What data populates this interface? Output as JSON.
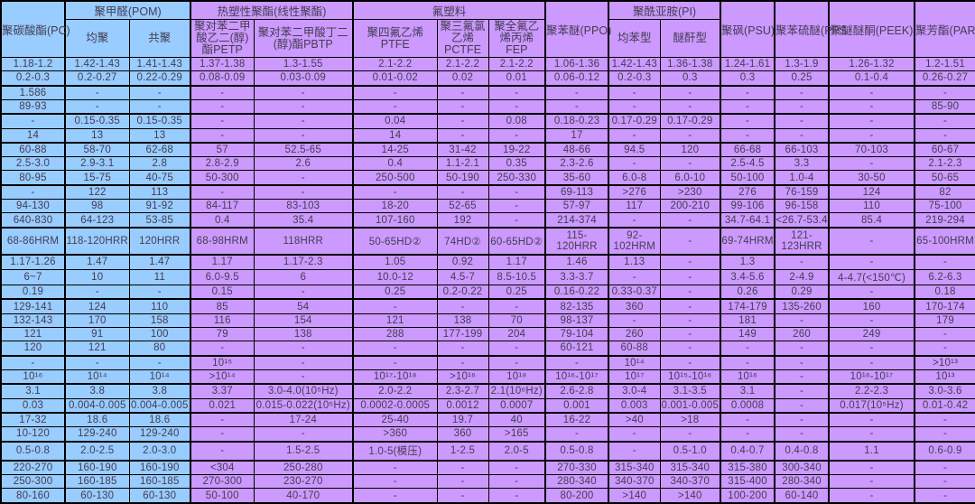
{
  "colors": {
    "blue_section": "#99CCFF",
    "purple_section": "#CC99FF",
    "grid_line": "#000000",
    "text": "#433d52"
  },
  "table": {
    "groups": [
      {
        "label": "聚碳酸酯(PC)"
      },
      {
        "label": "聚甲醛(POM)"
      },
      {
        "label": "热塑性聚酯(线性聚酯)"
      },
      {
        "label": "氟塑料"
      },
      {
        "label": "聚苯醚(PPO)"
      },
      {
        "label": "聚酰亚胺(PI)"
      },
      {
        "label": "聚砜(PSU)"
      },
      {
        "label": "聚苯硫醚(PPS"
      },
      {
        "label": "聚醚醚酮(PEEK)"
      },
      {
        "label": "聚芳酯(PAR)"
      }
    ],
    "subheads": [
      "均聚",
      "共聚",
      "聚对苯二甲酸乙二(醇)酯PETP",
      "聚对苯二甲酸丁二(醇)酯PBTP",
      "聚四氟乙烯PTFE",
      "聚三氟氯乙烯PCTFE",
      "聚全氟乙烯丙烯FEP",
      "均苯型",
      "醚酐型"
    ],
    "rows": [
      [
        "1.18-1.2",
        "1.42-1.43",
        "1.41-1.43",
        "1.37-1.38",
        "1.3-1.55",
        "2.1-2.2",
        "2.1-2.2",
        "2.1-2.2",
        "1.06-1.36",
        "1.42-1.43",
        "1.36-1.38",
        "1.24-1.61",
        "1.3-1.9",
        "1.26-1.32",
        "1.2-1.51"
      ],
      [
        "0.2-0.3",
        "0.2-0.27",
        "0.22-0.29",
        "0.08-0.09",
        "0.03-0.09",
        "0.01-0.02",
        "0.02",
        "0.01",
        "0.06-0.12",
        "0.2-0.3",
        "0.3",
        "0.3",
        "0.25",
        "0.1-0.4",
        "0.26-0.27"
      ],
      [
        "1.586",
        "-",
        "-",
        "-",
        "-",
        "-",
        "-",
        "-",
        "-",
        "-",
        "-",
        "-",
        "-",
        "-",
        "-"
      ],
      [
        "89-93",
        "-",
        "-",
        "-",
        "-",
        "-",
        "-",
        "-",
        "-",
        "-",
        "-",
        "-",
        "-",
        "-",
        "85-90"
      ],
      [
        "-",
        "0.15-0.35",
        "0.15-0.35",
        "-",
        "-",
        "0.04",
        "-",
        "0.08",
        "0.18-0.23",
        "0.17-0.29",
        "0.17-0.29",
        "-",
        "-",
        "-",
        "-"
      ],
      [
        "14",
        "13",
        "13",
        "-",
        "-",
        "14",
        "-",
        "-",
        "17",
        "-",
        "-",
        "-",
        "-",
        "-",
        "-"
      ],
      [
        "60-88",
        "58-70",
        "62-68",
        "57",
        "52.5-65",
        "14-25",
        "31-42",
        "19-22",
        "48-66",
        "94.5",
        "120",
        "66-68",
        "66-103",
        "70-103",
        "60-67"
      ],
      [
        "2.5-3.0",
        "2.9-3.1",
        "2.8",
        "2.8-2.9",
        "2.6",
        "0.4",
        "1.1-2.1",
        "0.35",
        "2.3-2.6",
        "-",
        "-",
        "2.5-4.5",
        "3.3",
        "-",
        "2.1-2.3"
      ],
      [
        "80-95",
        "15-75",
        "40-75",
        "50-300",
        "-",
        "250-500",
        "50-190",
        "250-330",
        "35-60",
        "6.0-8",
        "6.0-10",
        "50-100",
        "1.0-4",
        "30-50",
        "50-65"
      ],
      [
        "-",
        "122",
        "113",
        "-",
        "-",
        "-",
        "-",
        "-",
        "69-113",
        ">276",
        ">230",
        "276",
        "76-159",
        "124",
        "82"
      ],
      [
        "94-130",
        "98",
        "91-92",
        "84-117",
        "83-103",
        "18-20",
        "52-65",
        "-",
        "57-97",
        "117",
        "200-210",
        "99-106",
        "96-158",
        "110",
        "75-100"
      ],
      [
        "640-830",
        "64-123",
        "53-85",
        "0.4",
        "35.4",
        "107-160",
        "192",
        "-",
        "214-374",
        "-",
        "-",
        "34.7-64.1",
        "<26.7-53.4",
        "85.4",
        "219-294"
      ],
      [
        "68-86HRM",
        "118-120HRR",
        "120HRR",
        "68-98HRM",
        "118HRR",
        "50-65HD②",
        "74HD②",
        "60-65HD②",
        "115-120HRR",
        "92-102HRM",
        "-",
        "69-74HRM",
        "121-123HRR",
        "-",
        "65-100HRM"
      ],
      [
        "1.17-1.26",
        "1.47",
        "1.47",
        "1.17",
        "1.17-2.3",
        "1.05",
        "0.92",
        "1.17",
        "1.46",
        "1.13",
        "-",
        "1.3",
        "-",
        "-",
        "-"
      ],
      [
        "6~7",
        "10",
        "11",
        "6.0-9.5",
        "6",
        "10.0-12",
        "4.5-7",
        "8.5-10.5",
        "3.3-3.7",
        "-",
        "-",
        "3.4-5.6",
        "2-4.9",
        "4-4.7(<150℃)",
        "6.2-6.3"
      ],
      [
        "0.19",
        "-",
        "-",
        "0.15",
        "-",
        "0.25",
        "0.2-0.22",
        "0.25",
        "0.16-0.22",
        "0.33-0.37",
        "-",
        "0.26",
        "0.29",
        "-",
        "0.18"
      ],
      [
        "129-141",
        "124",
        "110",
        "85",
        "54",
        "-",
        "-",
        "-",
        "82-135",
        "360",
        "-",
        "174-179",
        "135-260",
        "160",
        "170-174"
      ],
      [
        "132-143",
        "170",
        "158",
        "116",
        "154",
        "121",
        "138",
        "70",
        "98-137",
        "-",
        "-",
        "181",
        "-",
        "-",
        "179"
      ],
      [
        "121",
        "91",
        "100",
        "79",
        "138",
        "288",
        "177-199",
        "204",
        "79-104",
        "260",
        "-",
        "149",
        "260",
        "249",
        "-"
      ],
      [
        "120",
        "121",
        "80",
        "-",
        "-",
        "-",
        "-",
        "-",
        "60-121",
        "60-88",
        "-",
        "-",
        "-",
        "-",
        "-"
      ],
      [
        "-",
        "-",
        "-",
        "10¹⁵",
        "-",
        "-",
        "-",
        "-",
        "-",
        "10¹⁴",
        "-",
        "-",
        "-",
        "-",
        ">10¹³"
      ],
      [
        "10¹⁶",
        "10¹⁴",
        "10¹⁴",
        ">10¹⁴",
        "-",
        "10¹⁷-10¹⁸",
        ">10¹⁶",
        "10¹⁸",
        "10¹⁶-10¹⁷",
        "10¹⁷",
        "10¹⁵-10¹⁶",
        "10¹⁶",
        "-",
        "10¹⁶-10¹⁷",
        "10¹³"
      ],
      [
        "3.1",
        "3.8",
        "3.8",
        "3.37",
        "3.0-4.0(10⁵Hz)",
        "2.0-2.2",
        "2.3-2.7",
        "2.1(10⁶Hz)",
        "2.6-2.8",
        "3.0-4",
        "3.1-3.5",
        "3.1",
        "-",
        "2.2-2.3",
        "3.0-3.6"
      ],
      [
        "0.03",
        "0.004-0.005",
        "0.004-0.005",
        "0.021",
        "0.015-0.022(10⁵Hz)",
        "0.0002-0.0005",
        "0.0012",
        "0.0007",
        "0.001",
        "0.003",
        "0.001-0.005",
        "0.0008",
        "-",
        "0.017(10⁵Hz)",
        "0.01-0.42"
      ],
      [
        "17-32",
        "18.6",
        "18.6",
        "-",
        "17-24",
        "25-40",
        "19.7",
        "40",
        "16-22",
        ">40",
        ">18",
        "-",
        "-",
        "-",
        "-"
      ],
      [
        "10-120",
        "129-240",
        "129-240",
        "-",
        "-",
        ">360",
        "360",
        ">165",
        "-",
        "-",
        "-",
        "-",
        "-",
        "-",
        "-"
      ],
      [
        "0.5-0.8",
        "2.0-2.5",
        "2.0-3.0",
        "-",
        "1.5-2.5",
        "1.0-5(模压)",
        "1-2.5",
        "2.0-5",
        "0.5-0.8",
        "-",
        "0.5-1.0",
        "0.4-0.7",
        "0.4-0.8",
        "1.1",
        "0.6-0.9"
      ],
      [
        "220-270",
        "160-190",
        "160-190",
        "<304",
        "250-280",
        "-",
        "-",
        "-",
        "270-330",
        "315-340",
        "315-340",
        "315-380",
        "300-340",
        "-",
        "-"
      ],
      [
        "250-300",
        "160-185",
        "160-185",
        "270-300",
        "230-270",
        "-",
        "-",
        "-",
        "280-340",
        "340-370",
        "340-370",
        "315-400",
        "280-340",
        "-",
        "-"
      ],
      [
        "80-160",
        "60-130",
        "60-130",
        "50-100",
        "40-170",
        "-",
        "-",
        "-",
        "80-200",
        ">140",
        ">140",
        "100-200",
        "60-140",
        "-",
        "-"
      ]
    ]
  }
}
